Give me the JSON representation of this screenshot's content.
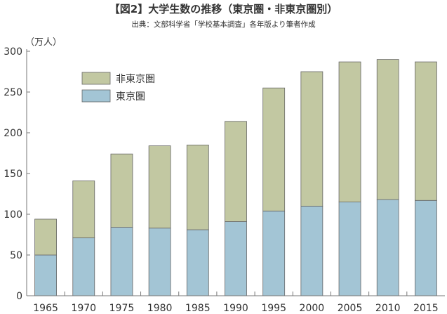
{
  "chart_data": {
    "type": "bar",
    "stacked": true,
    "title": "【図2】大学生数の推移（東京圏・非東京圏別）",
    "subtitle": "出典：文部科学省「学校基本調査」各年版より筆者作成",
    "ylabel": "（万人）",
    "xlabel": "",
    "ylim": [
      0,
      300
    ],
    "yticks": [
      0,
      50,
      100,
      150,
      200,
      250,
      300
    ],
    "categories": [
      "1965",
      "1970",
      "1975",
      "1980",
      "1985",
      "1990",
      "1995",
      "2000",
      "2005",
      "2010",
      "2015"
    ],
    "series": [
      {
        "name": "東京圏",
        "color": "#a3c5d5",
        "values": [
          50,
          71,
          84,
          83,
          81,
          91,
          104,
          110,
          115,
          118,
          117
        ]
      },
      {
        "name": "非東京圏",
        "color": "#c2c8a2",
        "values": [
          44,
          70,
          90,
          101,
          104,
          123,
          151,
          165,
          172,
          172,
          170
        ]
      }
    ],
    "legend": [
      "非東京圏",
      "東京圏"
    ],
    "legend_position": "top-left",
    "grid": false
  }
}
